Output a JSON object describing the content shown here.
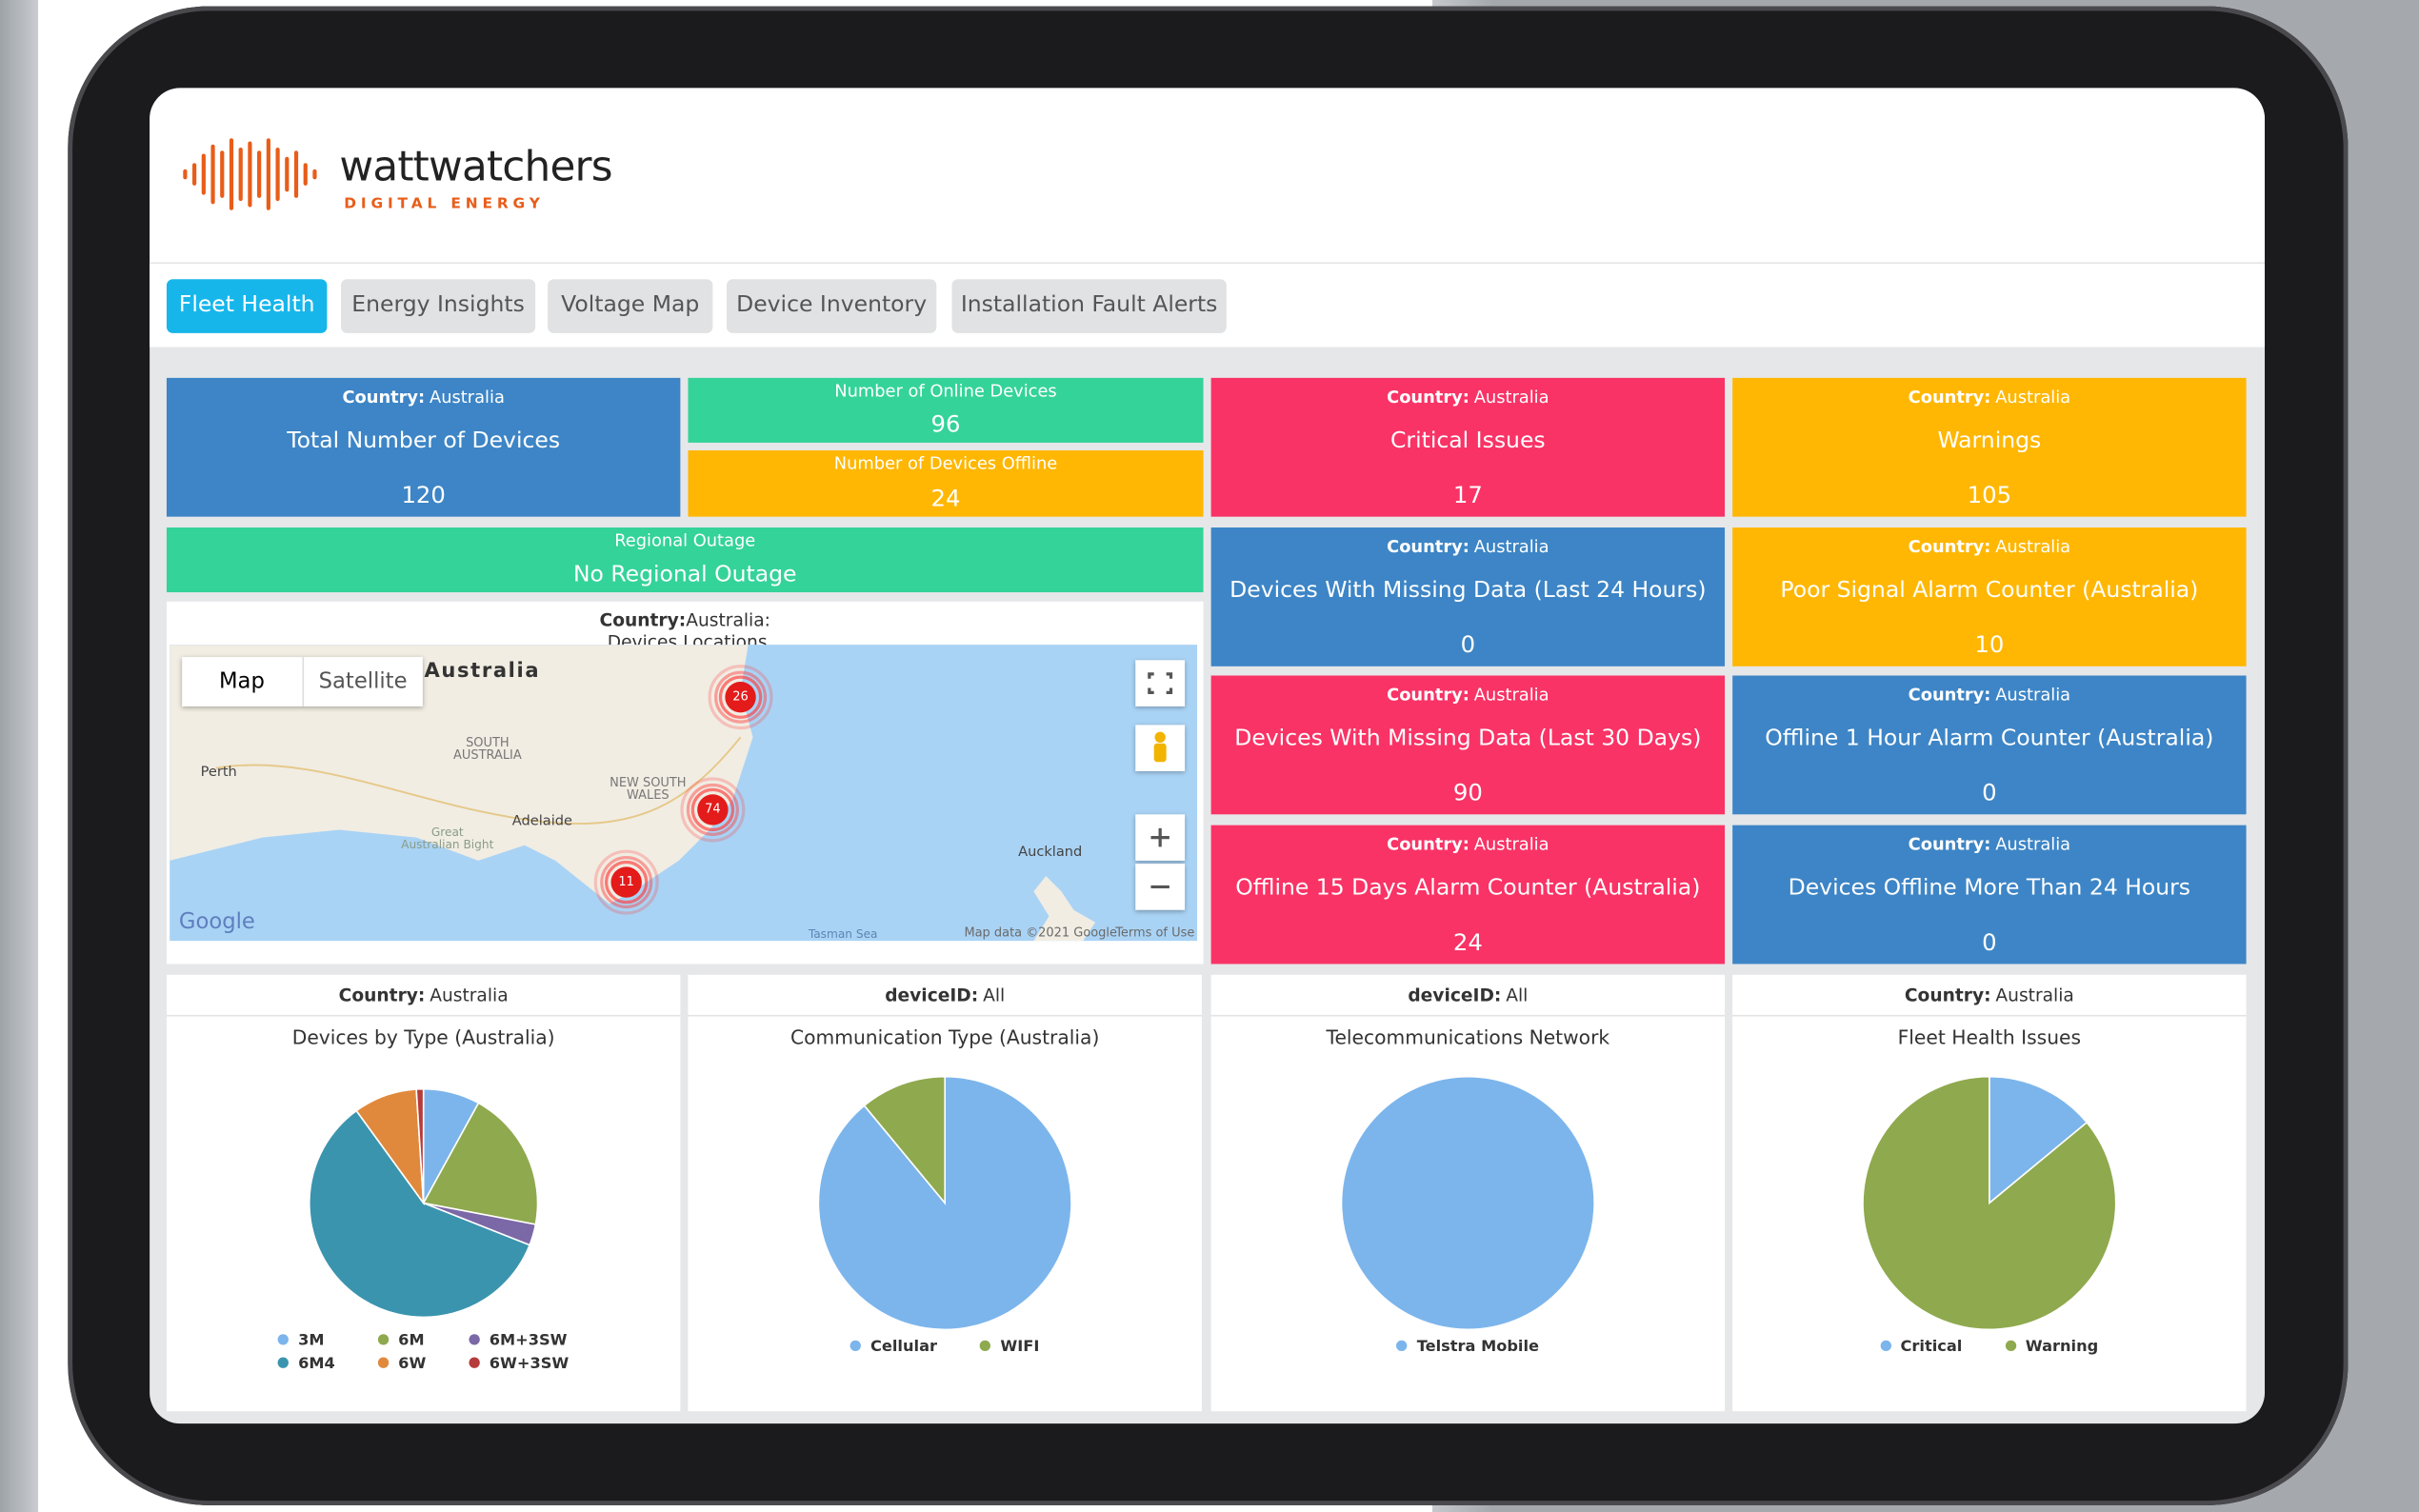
{
  "header": {
    "logo": "wattwatchers",
    "logo_sub": "DIGITAL ENERGY"
  },
  "tabs": [
    "Fleet Health",
    "Energy Insights",
    "Voltage Map",
    "Device Inventory",
    "Installation Fault Alerts"
  ],
  "tiles": [
    {
      "filter": {
        "label": "Country:",
        "value": "Australia"
      },
      "title": "Total Number of Devices",
      "value": "120",
      "color": "#3d85c6"
    },
    {
      "filter": {
        "label": "Country:",
        "value": "Australia"
      },
      "title": "Critical Issues",
      "value": "17",
      "color": "#f93366"
    },
    {
      "filter": {
        "label": "Country:",
        "value": "Australia"
      },
      "title": "Warnings",
      "value": "105",
      "color": "#ffb703"
    },
    {
      "filter": {
        "label": "Country:",
        "value": "Australia"
      },
      "title": "Devices With Missing Data (Last 24 Hours)",
      "value": "0",
      "color": "#3d85c6"
    },
    {
      "filter": {
        "label": "Country:",
        "value": "Australia"
      },
      "title": "Poor Signal Alarm Counter (Australia)",
      "value": "10",
      "color": "#ffb703"
    },
    {
      "filter": {
        "label": "Country:",
        "value": "Australia"
      },
      "title": "Devices With Missing Data (Last 30 Days)",
      "value": "90",
      "color": "#f93366"
    },
    {
      "filter": {
        "label": "Country:",
        "value": "Australia"
      },
      "title": "Offline 1 Hour Alarm Counter (Australia)",
      "value": "0",
      "color": "#3d85c6"
    },
    {
      "filter": {
        "label": "Country:",
        "value": "Australia"
      },
      "title": "Offline 15 Days Alarm Counter (Australia)",
      "value": "24",
      "color": "#f93366"
    },
    {
      "filter": {
        "label": "Country:",
        "value": "Australia"
      },
      "title": "Devices Offline More Than 24 Hours",
      "value": "0",
      "color": "#3d85c6"
    }
  ],
  "small_tiles": [
    {
      "title": "Number of Online Devices",
      "value": "96",
      "color": "#34d399"
    },
    {
      "title": "Number of Devices Offline",
      "value": "24",
      "color": "#ffb703"
    },
    {
      "title": "Regional Outage",
      "value": "No Regional Outage",
      "color": "#34d399"
    }
  ],
  "map": {
    "filter": {
      "label": "Country:",
      "value": "Australia"
    },
    "title": "Devices Locations",
    "controls": [
      "Map",
      "Satellite"
    ],
    "labels": [
      "Australia",
      "Perth",
      "SOUTH AUSTRALIA",
      "NEW SOUTH WALES",
      "Adelaide",
      "Great Australian Bight",
      "Auckland",
      "Tasman Sea"
    ],
    "clusters": [
      "26",
      "74",
      "11"
    ],
    "footer": [
      "Google",
      "Map data ©2021 Google",
      "Terms of Use"
    ]
  },
  "charts": [
    {
      "type": "pie",
      "filter": {
        "label": "Country:",
        "value": "Australia"
      },
      "title": "Devices by Type (Australia)",
      "categories": [
        "3M",
        "6M",
        "6M+3SW",
        "6M4",
        "6W",
        "6W+3SW"
      ],
      "values": [
        8,
        20,
        3,
        59,
        9,
        1
      ],
      "colors": [
        "#7cb5ec",
        "#8fa94e",
        "#7b68a6",
        "#3a94ae",
        "#e0893d",
        "#b63b3b"
      ]
    },
    {
      "type": "pie",
      "filter": {
        "label": "deviceID:",
        "value": "All"
      },
      "title": "Communication Type (Australia)",
      "categories": [
        "Cellular",
        "WIFI"
      ],
      "values": [
        89,
        11
      ],
      "colors": [
        "#7cb5ec",
        "#8fa94e"
      ]
    },
    {
      "type": "pie",
      "filter": {
        "label": "deviceID:",
        "value": "All"
      },
      "title": "Telecommunications Network",
      "categories": [
        "Telstra Mobile"
      ],
      "values": [
        100
      ],
      "colors": [
        "#7cb5ec"
      ]
    },
    {
      "type": "pie",
      "filter": {
        "label": "Country:",
        "value": "Australia"
      },
      "title": "Fleet Health Issues",
      "categories": [
        "Critical",
        "Warning"
      ],
      "values": [
        14,
        86
      ],
      "colors": [
        "#7cb5ec",
        "#8fa94e"
      ]
    }
  ]
}
